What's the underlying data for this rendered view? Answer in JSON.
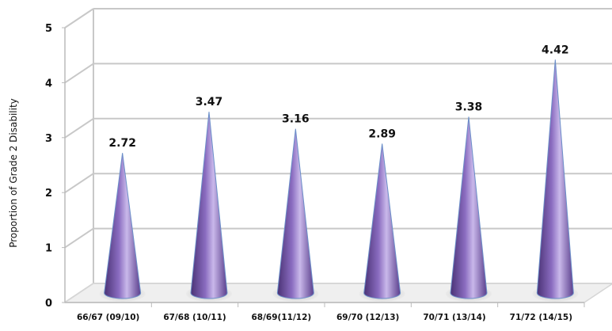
{
  "chart_data": {
    "type": "bar",
    "style": "3d-cone",
    "categories": [
      "66/67 (09/10)",
      "67/68 (10/11)",
      "68/69(11/12)",
      "69/70 (12/13)",
      "70/71 (13/14)",
      "71/72 (14/15)"
    ],
    "values": [
      2.72,
      3.47,
      3.16,
      2.89,
      3.38,
      4.42
    ],
    "value_labels": [
      "2.72",
      "3.47",
      "3.16",
      "2.89",
      "3.38",
      "4.42"
    ],
    "ylabel": "Proportion of Grade 2 Disability",
    "yticks": [
      "0",
      "1",
      "2",
      "3",
      "4",
      "5"
    ],
    "ylim": [
      0,
      5
    ],
    "grid": true,
    "legend": false,
    "colors": {
      "cone_dark": "#4a3275",
      "cone_mid": "#8a6cc0",
      "cone_light": "#c9b8ea",
      "edge": "#6b8fc9",
      "grid": "#c8c8c8",
      "floor": "#d6d6d6",
      "text": "#111111"
    }
  }
}
